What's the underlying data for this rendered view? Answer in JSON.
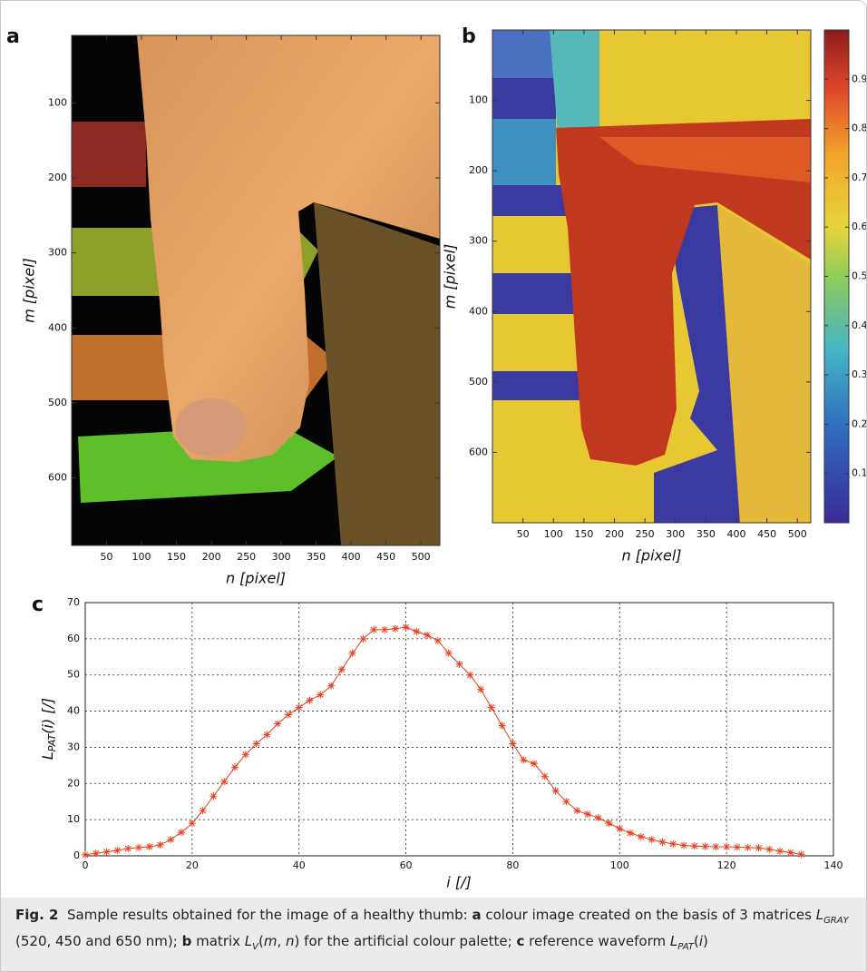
{
  "panels": [
    {
      "label": "a",
      "xlabel": "n [pixel]",
      "ylabel": "m [pixel]",
      "xlim": [
        0,
        527
      ],
      "ylim": [
        10,
        690
      ],
      "xticks": [
        50,
        100,
        150,
        200,
        250,
        300,
        350,
        400,
        450,
        500
      ],
      "yticks": [
        100,
        200,
        300,
        400,
        500,
        600
      ]
    },
    {
      "label": "b",
      "xlabel": "n [pixel]",
      "ylabel": "m [pixel]",
      "xlim": [
        0,
        522
      ],
      "ylim": [
        0,
        700
      ],
      "xticks": [
        50,
        100,
        150,
        200,
        250,
        300,
        350,
        400,
        450,
        500
      ],
      "yticks": [
        100,
        200,
        300,
        400,
        500,
        600
      ],
      "colorbar": {
        "lim": [
          0,
          1
        ],
        "ticks": [
          0.1,
          0.2,
          0.3,
          0.4,
          0.5,
          0.6,
          0.7,
          0.8,
          0.9
        ]
      }
    }
  ],
  "chart_data": {
    "type": "line",
    "label": "c",
    "xlabel": "i [/]",
    "ylabel": [
      "L",
      "PAT",
      "(i) [/]"
    ],
    "x": [
      0,
      2,
      4,
      6,
      8,
      10,
      12,
      14,
      16,
      18,
      20,
      22,
      24,
      26,
      28,
      30,
      32,
      34,
      36,
      38,
      40,
      42,
      44,
      46,
      48,
      50,
      52,
      54,
      56,
      58,
      60,
      62,
      64,
      66,
      68,
      70,
      72,
      74,
      76,
      78,
      80,
      82,
      84,
      86,
      88,
      90,
      92,
      94,
      96,
      98,
      100,
      102,
      104,
      106,
      108,
      110,
      112,
      114,
      116,
      118,
      120,
      122,
      124,
      126,
      128,
      130,
      132,
      134
    ],
    "series": [
      {
        "color": "#e8401c",
        "values": [
          0.3,
          0.7,
          1.1,
          1.5,
          2.0,
          2.3,
          2.5,
          3.0,
          4.5,
          6.5,
          9,
          12.5,
          16.5,
          20.5,
          24.5,
          28,
          31,
          33.5,
          36.5,
          39,
          41,
          43,
          44.5,
          47,
          51.5,
          56,
          60,
          62.5,
          62.5,
          62.8,
          63.2,
          62,
          61,
          59.5,
          56,
          53,
          50,
          46,
          41,
          36,
          31,
          26.5,
          25.5,
          22,
          18,
          15,
          12.5,
          11.5,
          10.5,
          9,
          7.5,
          6.3,
          5.3,
          4.5,
          3.8,
          3.3,
          2.9,
          2.7,
          2.6,
          2.5,
          2.5,
          2.4,
          2.3,
          2.2,
          1.8,
          1.3,
          0.9,
          0.4
        ]
      }
    ],
    "xlim": [
      0,
      140
    ],
    "ylim": [
      0,
      70
    ],
    "xticks": [
      0,
      20,
      40,
      60,
      80,
      100,
      120,
      140
    ],
    "yticks": [
      0,
      10,
      20,
      30,
      40,
      50,
      60,
      70
    ],
    "grid": true
  },
  "caption": [
    "Fig. 2",
    "Sample results obtained for the image of a healthy thumb: ",
    "a",
    " colour image created on the basis of 3 matrices ",
    "L",
    "GRAY",
    " (520, 450 and 650 nm); ",
    "b",
    " matrix ",
    "L",
    "V",
    "(",
    "m",
    ", ",
    "n",
    ") for the artificial colour palette; ",
    "c",
    " reference waveform ",
    "L",
    "PAT",
    "(",
    "i",
    ")"
  ]
}
